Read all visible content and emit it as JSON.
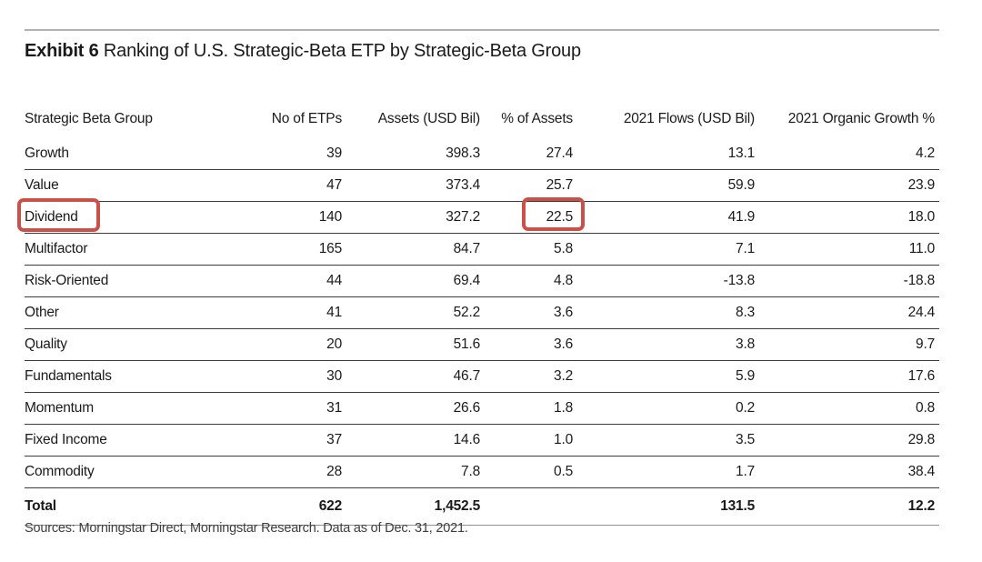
{
  "title": {
    "exhibit_label": "Exhibit 6",
    "text": "Ranking of U.S. Strategic-Beta ETP by Strategic-Beta Group"
  },
  "table": {
    "columns": [
      "Strategic Beta Group",
      "No of ETPs",
      "Assets (USD Bil)",
      "% of Assets",
      "2021 Flows (USD Bil)",
      "2021 Organic Growth %"
    ],
    "rows": [
      {
        "group": "Growth",
        "etps": "39",
        "assets": "398.3",
        "pct_assets": "27.4",
        "flows": "13.1",
        "organic_growth": "4.2"
      },
      {
        "group": "Value",
        "etps": "47",
        "assets": "373.4",
        "pct_assets": "25.7",
        "flows": "59.9",
        "organic_growth": "23.9"
      },
      {
        "group": "Dividend",
        "etps": "140",
        "assets": "327.2",
        "pct_assets": "22.5",
        "flows": "41.9",
        "organic_growth": "18.0"
      },
      {
        "group": "Multifactor",
        "etps": "165",
        "assets": "84.7",
        "pct_assets": "5.8",
        "flows": "7.1",
        "organic_growth": "11.0"
      },
      {
        "group": "Risk-Oriented",
        "etps": "44",
        "assets": "69.4",
        "pct_assets": "4.8",
        "flows": "-13.8",
        "organic_growth": "-18.8"
      },
      {
        "group": "Other",
        "etps": "41",
        "assets": "52.2",
        "pct_assets": "3.6",
        "flows": "8.3",
        "organic_growth": "24.4"
      },
      {
        "group": "Quality",
        "etps": "20",
        "assets": "51.6",
        "pct_assets": "3.6",
        "flows": "3.8",
        "organic_growth": "9.7"
      },
      {
        "group": "Fundamentals",
        "etps": "30",
        "assets": "46.7",
        "pct_assets": "3.2",
        "flows": "5.9",
        "organic_growth": "17.6"
      },
      {
        "group": "Momentum",
        "etps": "31",
        "assets": "26.6",
        "pct_assets": "1.8",
        "flows": "0.2",
        "organic_growth": "0.8"
      },
      {
        "group": "Fixed Income",
        "etps": "37",
        "assets": "14.6",
        "pct_assets": "1.0",
        "flows": "3.5",
        "organic_growth": "29.8"
      },
      {
        "group": "Commodity",
        "etps": "28",
        "assets": "7.8",
        "pct_assets": "0.5",
        "flows": "1.7",
        "organic_growth": "38.4"
      }
    ],
    "total_row": {
      "group": "Total",
      "etps": "622",
      "assets": "1,452.5",
      "pct_assets": "",
      "flows": "131.5",
      "organic_growth": "12.2"
    }
  },
  "annotations": {
    "highlight_color": "#c9514a",
    "highlighted_group": "Dividend",
    "highlighted_pct_assets": "22.5"
  },
  "footer": {
    "sources": "Sources: Morningstar Direct, Morningstar Research. Data as of Dec. 31, 2021."
  }
}
